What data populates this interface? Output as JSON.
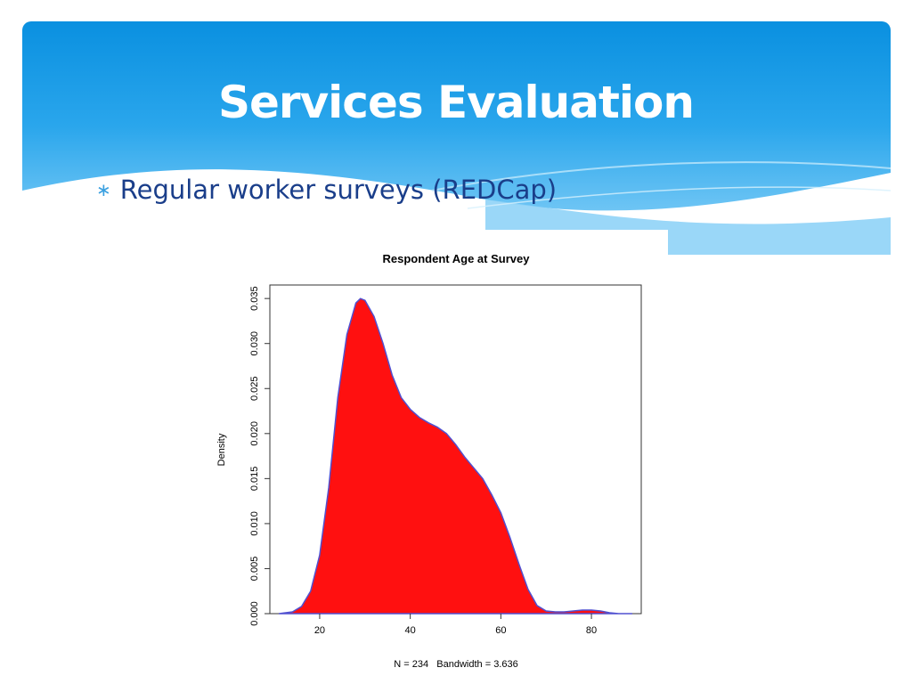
{
  "slide": {
    "title": "Services Evaluation",
    "bullets": [
      {
        "text": "Regular worker surveys (REDCap)"
      }
    ],
    "colors": {
      "header_top": "#0a90e0",
      "header_bottom": "#a8ddf9",
      "title_text": "#ffffff",
      "bullet_text": "#1a3e8a"
    }
  },
  "chart_data": {
    "type": "area",
    "title": "Respondent Age at Survey",
    "xlabel": "N = 234   Bandwidth = 3.636",
    "ylabel": "Density",
    "xlim": [
      9,
      91
    ],
    "ylim": [
      0,
      0.0365
    ],
    "xticks": [
      20,
      40,
      60,
      80
    ],
    "yticks": [
      0.0,
      0.005,
      0.01,
      0.015,
      0.02,
      0.025,
      0.03,
      0.035
    ],
    "ytick_labels": [
      "0.000",
      "0.005",
      "0.010",
      "0.015",
      "0.020",
      "0.025",
      "0.030",
      "0.035"
    ],
    "grid": false,
    "fill_color": "#ff1010",
    "line_color": "#5050d0",
    "series": [
      {
        "x": [
          11,
          14,
          16,
          18,
          20,
          22,
          24,
          26,
          28,
          29,
          30,
          32,
          34,
          36,
          38,
          40,
          42,
          44,
          46,
          48,
          50,
          52,
          54,
          56,
          58,
          60,
          62,
          64,
          66,
          68,
          70,
          72,
          74,
          76,
          78,
          80,
          82,
          84,
          86,
          89
        ],
        "y": [
          0.0,
          0.0002,
          0.0008,
          0.0025,
          0.0065,
          0.014,
          0.024,
          0.031,
          0.0345,
          0.035,
          0.0348,
          0.033,
          0.03,
          0.0265,
          0.024,
          0.0227,
          0.0218,
          0.0212,
          0.0207,
          0.02,
          0.0188,
          0.0174,
          0.0162,
          0.015,
          0.0132,
          0.0112,
          0.0085,
          0.0055,
          0.0027,
          0.0009,
          0.0003,
          0.0002,
          0.0002,
          0.0003,
          0.0004,
          0.0004,
          0.0003,
          0.0001,
          0.0,
          0.0
        ]
      }
    ]
  }
}
